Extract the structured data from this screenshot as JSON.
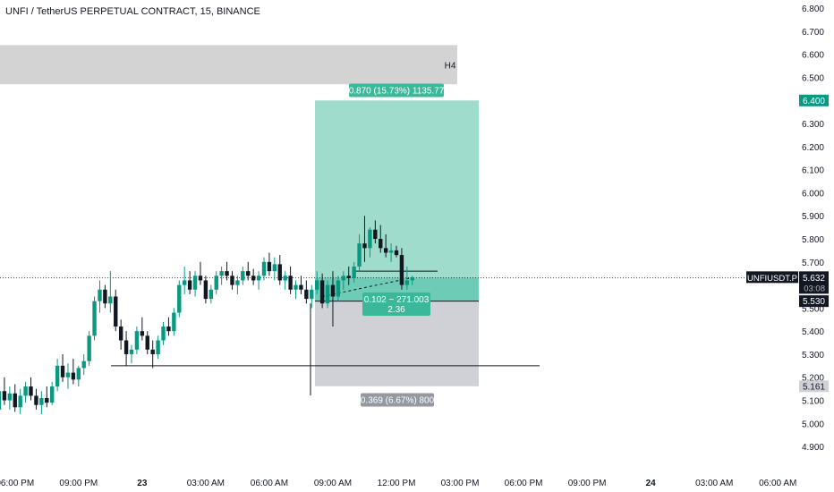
{
  "header": {
    "title": "UNFI / TetherUS PERPETUAL CONTRACT, 15, BINANCE"
  },
  "colors": {
    "up": "#089981",
    "down": "#131722",
    "target_zone": "#9fdccc",
    "entry_zone": "#6ecbb5",
    "stop_zone": "#cfd1d6",
    "h4_zone": "#d3d3d3",
    "label_green": "#3bb89a",
    "label_gray": "#9598a1",
    "axis_text": "#131722",
    "tag_dark": "#131722"
  },
  "chart_data": {
    "type": "candlestick",
    "symbol": "UNFIUSDT.P",
    "y_axis": {
      "min": 4.85,
      "max": 6.82,
      "ticks": [
        "6.800",
        "6.700",
        "6.600",
        "6.500",
        "6.400",
        "6.300",
        "6.200",
        "6.100",
        "6.000",
        "5.900",
        "5.800",
        "5.700",
        "5.600",
        "5.500",
        "5.400",
        "5.300",
        "5.200",
        "5.100",
        "5.000",
        "4.900"
      ]
    },
    "x_axis": {
      "ticks": [
        {
          "label": "06:00 PM",
          "bar": 3
        },
        {
          "label": "09:00 PM",
          "bar": 15
        },
        {
          "label": "23",
          "bar": 27
        },
        {
          "label": "03:00 AM",
          "bar": 39
        },
        {
          "label": "06:00 AM",
          "bar": 51
        },
        {
          "label": "09:00 AM",
          "bar": 63
        },
        {
          "label": "12:00 PM",
          "bar": 75
        },
        {
          "label": "03:00 PM",
          "bar": 87
        },
        {
          "label": "06:00 PM",
          "bar": 99
        },
        {
          "label": "09:00 PM",
          "bar": 111
        },
        {
          "label": "24",
          "bar": 123
        },
        {
          "label": "03:00 AM",
          "bar": 135
        },
        {
          "label": "06:00 AM",
          "bar": 147
        }
      ]
    },
    "candles": [
      [
        5.06,
        5.18,
        5.02,
        5.14
      ],
      [
        5.14,
        5.2,
        5.08,
        5.1
      ],
      [
        5.1,
        5.16,
        5.06,
        5.13
      ],
      [
        5.13,
        5.17,
        5.05,
        5.07
      ],
      [
        5.07,
        5.15,
        5.04,
        5.12
      ],
      [
        5.12,
        5.18,
        5.09,
        5.16
      ],
      [
        5.16,
        5.2,
        5.1,
        5.12
      ],
      [
        5.12,
        5.15,
        5.06,
        5.08
      ],
      [
        5.08,
        5.14,
        5.04,
        5.11
      ],
      [
        5.11,
        5.16,
        5.07,
        5.09
      ],
      [
        5.09,
        5.18,
        5.08,
        5.16
      ],
      [
        5.16,
        5.28,
        5.14,
        5.25
      ],
      [
        5.25,
        5.3,
        5.18,
        5.2
      ],
      [
        5.2,
        5.26,
        5.15,
        5.22
      ],
      [
        5.22,
        5.28,
        5.17,
        5.19
      ],
      [
        5.19,
        5.25,
        5.16,
        5.24
      ],
      [
        5.24,
        5.3,
        5.21,
        5.27
      ],
      [
        5.27,
        5.4,
        5.25,
        5.38
      ],
      [
        5.38,
        5.55,
        5.36,
        5.53
      ],
      [
        5.53,
        5.62,
        5.48,
        5.58
      ],
      [
        5.58,
        5.6,
        5.5,
        5.52
      ],
      [
        5.52,
        5.66,
        5.48,
        5.55
      ],
      [
        5.55,
        5.58,
        5.4,
        5.42
      ],
      [
        5.42,
        5.45,
        5.32,
        5.36
      ],
      [
        5.36,
        5.4,
        5.25,
        5.3
      ],
      [
        5.3,
        5.34,
        5.26,
        5.32
      ],
      [
        5.32,
        5.42,
        5.3,
        5.4
      ],
      [
        5.4,
        5.46,
        5.36,
        5.38
      ],
      [
        5.38,
        5.4,
        5.3,
        5.32
      ],
      [
        5.32,
        5.36,
        5.24,
        5.3
      ],
      [
        5.3,
        5.38,
        5.28,
        5.36
      ],
      [
        5.36,
        5.44,
        5.34,
        5.42
      ],
      [
        5.42,
        5.46,
        5.38,
        5.4
      ],
      [
        5.4,
        5.5,
        5.38,
        5.48
      ],
      [
        5.48,
        5.62,
        5.46,
        5.6
      ],
      [
        5.6,
        5.68,
        5.56,
        5.62
      ],
      [
        5.62,
        5.66,
        5.56,
        5.58
      ],
      [
        5.58,
        5.66,
        5.55,
        5.64
      ],
      [
        5.64,
        5.7,
        5.6,
        5.62
      ],
      [
        5.62,
        5.64,
        5.52,
        5.54
      ],
      [
        5.54,
        5.6,
        5.52,
        5.58
      ],
      [
        5.58,
        5.66,
        5.56,
        5.64
      ],
      [
        5.64,
        5.68,
        5.6,
        5.66
      ],
      [
        5.66,
        5.7,
        5.62,
        5.64
      ],
      [
        5.64,
        5.66,
        5.58,
        5.6
      ],
      [
        5.6,
        5.64,
        5.56,
        5.62
      ],
      [
        5.62,
        5.68,
        5.6,
        5.66
      ],
      [
        5.66,
        5.7,
        5.62,
        5.64
      ],
      [
        5.64,
        5.67,
        5.6,
        5.62
      ],
      [
        5.62,
        5.66,
        5.58,
        5.64
      ],
      [
        5.64,
        5.72,
        5.62,
        5.7
      ],
      [
        5.7,
        5.74,
        5.64,
        5.66
      ],
      [
        5.66,
        5.72,
        5.62,
        5.69
      ],
      [
        5.69,
        5.73,
        5.6,
        5.62
      ],
      [
        5.62,
        5.66,
        5.58,
        5.64
      ],
      [
        5.64,
        5.68,
        5.56,
        5.58
      ],
      [
        5.58,
        5.62,
        5.54,
        5.6
      ],
      [
        5.6,
        5.64,
        5.56,
        5.58
      ],
      [
        5.58,
        5.62,
        5.52,
        5.54
      ],
      [
        5.54,
        5.6,
        5.5,
        5.58
      ],
      [
        5.58,
        5.66,
        5.56,
        5.62
      ],
      [
        5.62,
        5.65,
        5.5,
        5.52
      ],
      [
        5.52,
        5.62,
        5.5,
        5.6
      ],
      [
        5.6,
        5.66,
        5.42,
        5.55
      ],
      [
        5.55,
        5.64,
        5.53,
        5.62
      ],
      [
        5.62,
        5.66,
        5.58,
        5.64
      ],
      [
        5.64,
        5.68,
        5.6,
        5.63
      ],
      [
        5.63,
        5.7,
        5.61,
        5.68
      ],
      [
        5.68,
        5.82,
        5.66,
        5.78
      ],
      [
        5.78,
        5.9,
        5.7,
        5.76
      ],
      [
        5.76,
        5.85,
        5.72,
        5.84
      ],
      [
        5.84,
        5.88,
        5.78,
        5.8
      ],
      [
        5.8,
        5.86,
        5.74,
        5.76
      ],
      [
        5.76,
        5.82,
        5.72,
        5.74
      ],
      [
        5.74,
        5.78,
        5.7,
        5.75
      ],
      [
        5.75,
        5.77,
        5.72,
        5.73
      ],
      [
        5.73,
        5.76,
        5.58,
        5.6
      ],
      [
        5.6,
        5.68,
        5.58,
        5.62
      ],
      [
        5.62,
        5.64,
        5.6,
        5.632
      ]
    ],
    "annotations": {
      "h4_zone": {
        "label": "H4",
        "y_top": 6.64,
        "y_bottom": 6.47
      },
      "position": {
        "entry": 5.53,
        "target": 6.4,
        "stop": 5.161,
        "target_label": "0.870 (15.73%) 1135.77",
        "stop_label": "0.369 (6.67%) 800",
        "pnl_label_line1": "0.102 ~ 271.003",
        "pnl_label_line2": "2.36"
      },
      "support_line": 5.25,
      "resistance_line": 5.66
    },
    "price_tags": {
      "last_symbol": "UNFIUSDT.P",
      "last_price": "5.632",
      "countdown": "03:08",
      "target": "6.400",
      "entry": "5.530",
      "stop": "5.161"
    }
  }
}
